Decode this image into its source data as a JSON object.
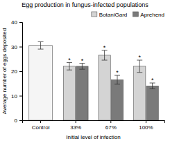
{
  "chart_data": {
    "type": "bar",
    "title": "Egg production in fungus-infected populations",
    "xlabel": "Initial level of infection",
    "ylabel": "Average number of eggs deposited",
    "categories": [
      "Control",
      "33%",
      "67%",
      "100%"
    ],
    "series": [
      {
        "name": "BotaniGard",
        "color": "#d4d4d4",
        "colors": [
          "#f5f5f5",
          "#d4d4d4",
          "#d4d4d4",
          "#d4d4d4"
        ],
        "values": [
          30.5,
          22.0,
          26.5,
          22.0
        ],
        "errors": [
          1.5,
          1.5,
          2.0,
          2.5
        ]
      },
      {
        "name": "Aprehend",
        "color": "#7a7a7a",
        "values": [
          null,
          22.0,
          16.5,
          14.0
        ],
        "errors": [
          null,
          1.2,
          1.8,
          1.2
        ]
      }
    ],
    "annotations": [
      {
        "text": "*",
        "x": "33%",
        "series": "BotaniGard"
      },
      {
        "text": "*",
        "x": "33%",
        "series": "Aprehend"
      },
      {
        "text": "*",
        "x": "67%",
        "series": "BotaniGard"
      },
      {
        "text": "*",
        "x": "67%",
        "series": "Aprehend"
      },
      {
        "text": "*",
        "x": "100%",
        "series": "BotaniGard"
      },
      {
        "text": "*",
        "x": "100%",
        "series": "Aprehend"
      }
    ],
    "ylim": [
      0,
      40
    ],
    "yticks": [
      0,
      10,
      20,
      30,
      40
    ],
    "legend": "upper right"
  }
}
